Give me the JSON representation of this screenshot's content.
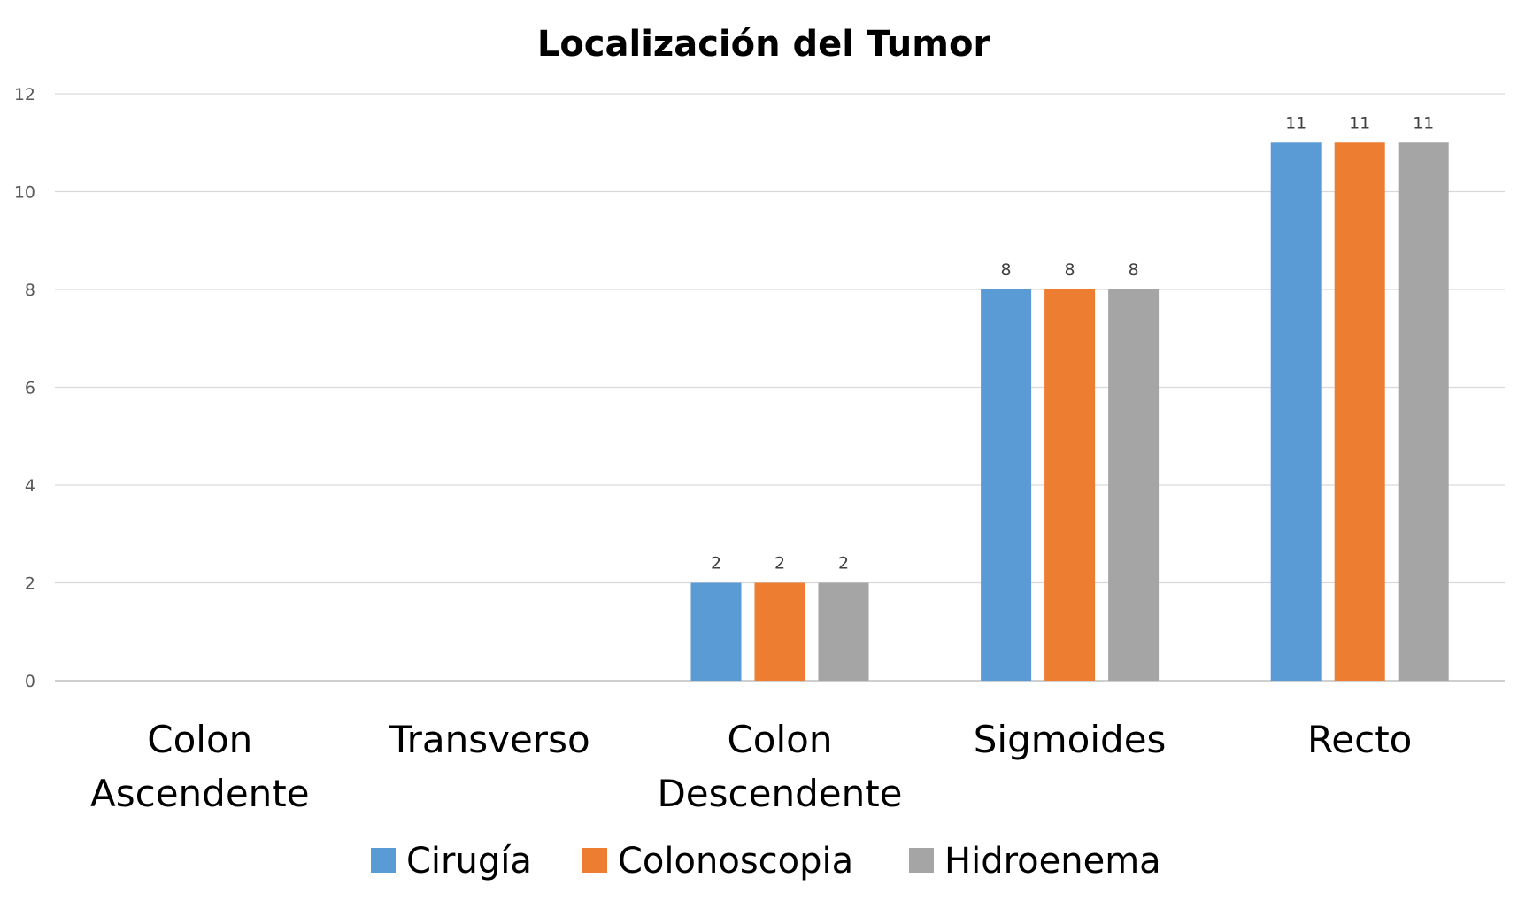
{
  "chart_data": {
    "type": "bar",
    "title": "Localización del Tumor",
    "xlabel": "",
    "ylabel": "",
    "ylim": [
      0,
      12
    ],
    "y_ticks": [
      0,
      2,
      4,
      6,
      8,
      10,
      12
    ],
    "grid": true,
    "legend_position": "bottom",
    "data_labels": true,
    "categories": [
      [
        "Colon",
        "Ascendente"
      ],
      [
        "Transverso"
      ],
      [
        "Colon",
        "Descendente"
      ],
      [
        "Sigmoides"
      ],
      [
        "Recto"
      ]
    ],
    "series": [
      {
        "name": "Cirugía",
        "color": "#5b9bd5",
        "values": [
          0,
          0,
          2,
          8,
          11
        ]
      },
      {
        "name": "Colonoscopia",
        "color": "#ed7d31",
        "values": [
          0,
          0,
          2,
          8,
          11
        ]
      },
      {
        "name": "Hidroenema",
        "color": "#a5a5a5",
        "values": [
          0,
          0,
          2,
          8,
          11
        ]
      }
    ]
  }
}
